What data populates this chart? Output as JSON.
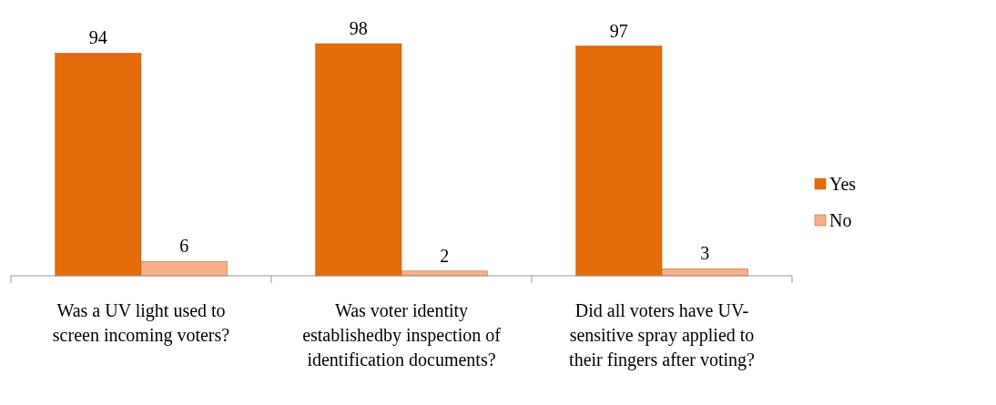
{
  "chart_data": {
    "type": "bar",
    "categories": [
      "Was a UV light used to screen incoming voters?",
      "Was voter identity establishedby inspection of identification documents?",
      "Did all voters have UV-sensitive spray applied to their fingers after voting?"
    ],
    "series": [
      {
        "name": "Yes",
        "color": "#e46c0a",
        "values": [
          94,
          98,
          97
        ]
      },
      {
        "name": "No",
        "color": "#f5b08a",
        "values": [
          6,
          2,
          3
        ]
      }
    ],
    "data_labels": true,
    "legend": "right"
  }
}
